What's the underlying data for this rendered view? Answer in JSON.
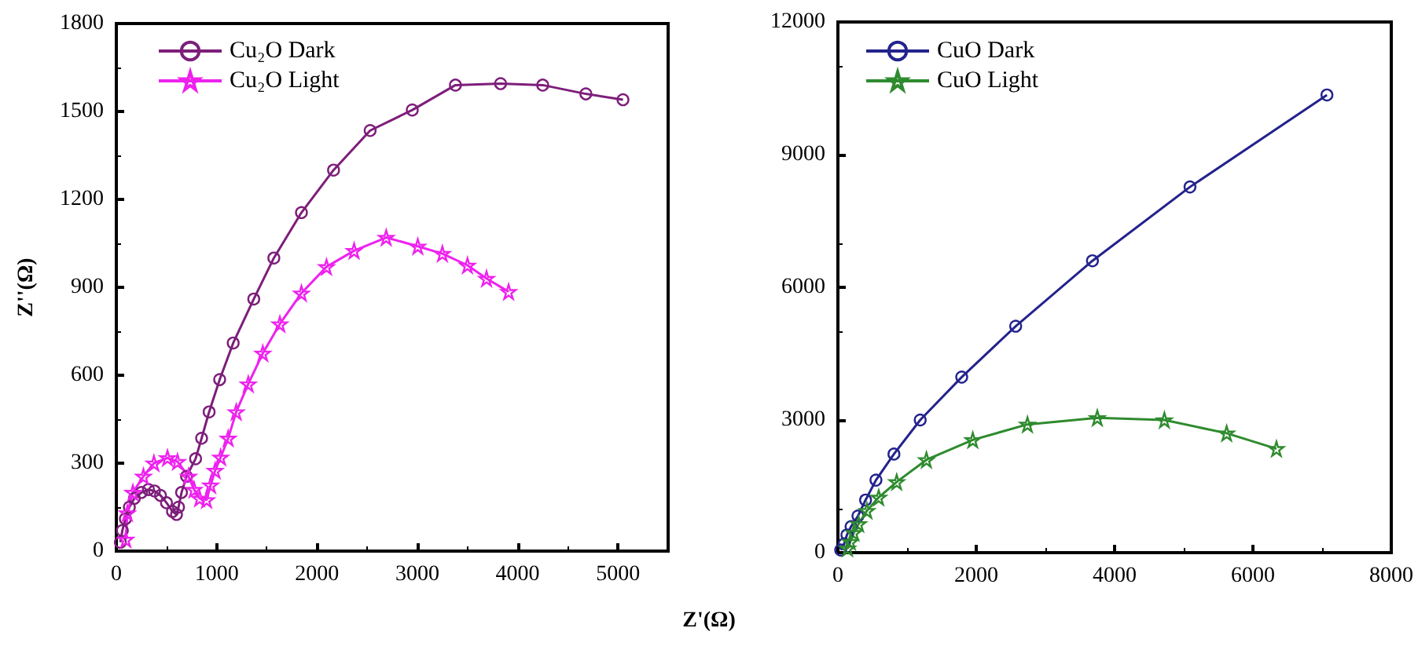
{
  "chart_data": [
    {
      "type": "line",
      "xlabel": "Z'(Ω)",
      "ylabel": "Z''(Ω)",
      "xlim": [
        0,
        5500
      ],
      "xticks": [
        0,
        1000,
        2000,
        3000,
        4000,
        5000
      ],
      "ylim": [
        0,
        1800
      ],
      "yticks": [
        0,
        300,
        600,
        900,
        1200,
        1500,
        1800
      ],
      "legend": "top left",
      "grid": false,
      "line_style": "solid",
      "series": [
        {
          "name": "Cu₂O Dark",
          "color": "#7d1e7a",
          "marker": "circle",
          "x": [
            40,
            60,
            90,
            130,
            180,
            250,
            320,
            380,
            440,
            500,
            560,
            600,
            620,
            650,
            700,
            790,
            850,
            925,
            1030,
            1165,
            1370,
            1570,
            1845,
            2165,
            2530,
            2950,
            3380,
            3830,
            4250,
            4680,
            5050
          ],
          "values": [
            30,
            70,
            110,
            150,
            180,
            200,
            210,
            205,
            190,
            165,
            135,
            125,
            150,
            200,
            255,
            315,
            385,
            475,
            585,
            710,
            860,
            1000,
            1155,
            1300,
            1435,
            1505,
            1590,
            1595,
            1590,
            1560,
            1540
          ]
        },
        {
          "name": "Cu₂O Light",
          "color": "#ee22ee",
          "marker": "star",
          "x": [
            95,
            110,
            165,
            270,
            375,
            510,
            610,
            720,
            775,
            830,
            900,
            940,
            985,
            1040,
            1115,
            1195,
            1315,
            1460,
            1630,
            1845,
            2095,
            2370,
            2690,
            3005,
            3250,
            3500,
            3690,
            3910
          ],
          "values": [
            40,
            130,
            200,
            255,
            300,
            318,
            305,
            255,
            210,
            180,
            175,
            225,
            275,
            320,
            385,
            475,
            570,
            675,
            775,
            880,
            970,
            1025,
            1070,
            1040,
            1015,
            975,
            930,
            885
          ]
        }
      ]
    },
    {
      "type": "line",
      "xlim": [
        0,
        8000
      ],
      "xticks": [
        0,
        2000,
        4000,
        6000,
        8000
      ],
      "ylim": [
        0,
        12000
      ],
      "yticks": [
        0,
        3000,
        6000,
        9000,
        12000
      ],
      "legend": "top left",
      "grid": false,
      "line_style": "solid",
      "series": [
        {
          "name": "CuO Dark",
          "color": "#23238c",
          "marker": "circle",
          "x": [
            40,
            90,
            130,
            190,
            290,
            400,
            550,
            810,
            1190,
            1790,
            2570,
            3680,
            5090,
            7070
          ],
          "values": [
            60,
            200,
            400,
            590,
            830,
            1190,
            1640,
            2230,
            3000,
            3970,
            5120,
            6600,
            8270,
            10350
          ]
        },
        {
          "name": "CuO Light",
          "color": "#2e8b2e",
          "marker": "star",
          "x": [
            140,
            180,
            230,
            300,
            420,
            590,
            850,
            1280,
            1950,
            2740,
            3750,
            4720,
            5620,
            6340
          ],
          "values": [
            100,
            250,
            450,
            650,
            950,
            1250,
            1600,
            2100,
            2550,
            2900,
            3050,
            3000,
            2700,
            2350
          ]
        }
      ]
    }
  ]
}
